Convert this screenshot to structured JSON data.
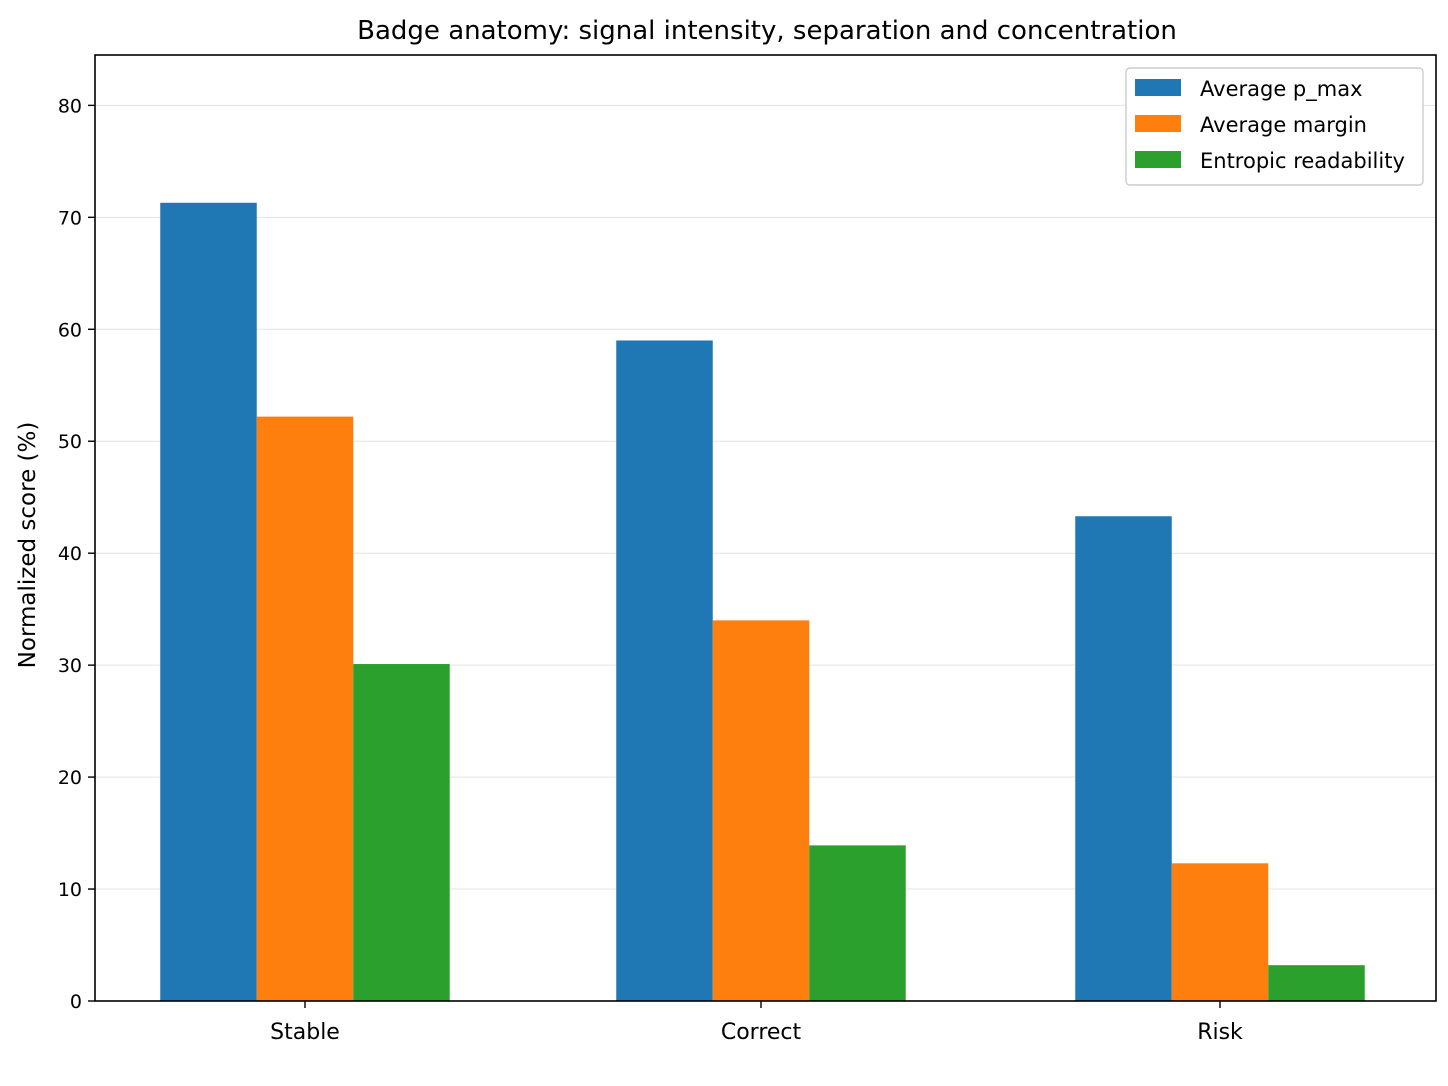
{
  "chart_data": {
    "type": "bar",
    "title": "Badge anatomy: signal intensity, separation and concentration",
    "xlabel": "",
    "ylabel": "Normalized score (%)",
    "categories": [
      "Stable",
      "Correct",
      "Risk"
    ],
    "series": [
      {
        "name": "Average p_max",
        "color": "#1f77b4",
        "values": [
          71.3,
          59.0,
          43.3
        ]
      },
      {
        "name": "Average margin",
        "color": "#ff7f0e",
        "values": [
          52.2,
          34.0,
          12.3
        ]
      },
      {
        "name": "Entropic readability",
        "color": "#2ca02c",
        "values": [
          30.1,
          13.9,
          3.2
        ]
      }
    ],
    "ylim": [
      0,
      84.5
    ],
    "yticks": [
      0,
      10,
      20,
      30,
      40,
      50,
      60,
      70,
      80
    ],
    "grid": "horizontal",
    "legend_position": "top-right"
  }
}
